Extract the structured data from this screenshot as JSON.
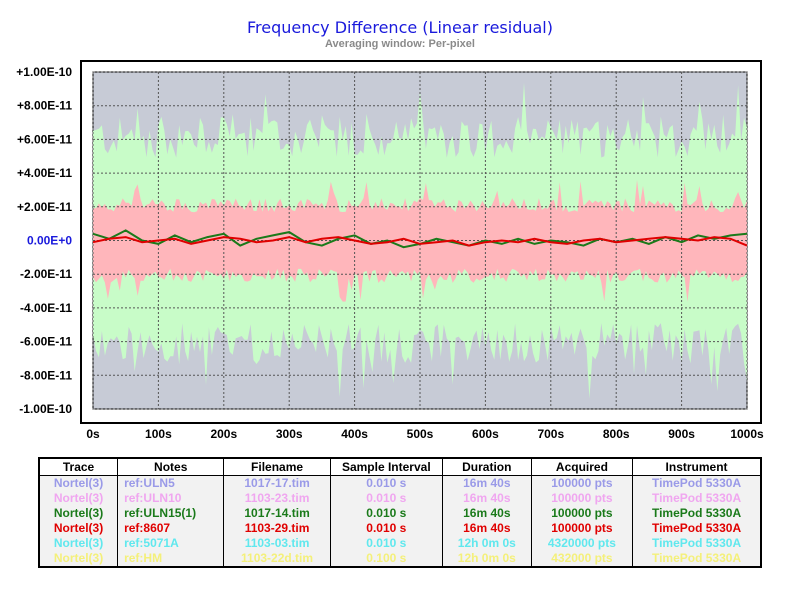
{
  "chart_data": {
    "type": "line",
    "title": "Frequency Difference  (Linear residual)",
    "subtitle": "Averaging window: Per-pixel",
    "xlabel": "",
    "ylabel": "",
    "x_ticks": [
      "0s",
      "100s",
      "200s",
      "300s",
      "400s",
      "500s",
      "600s",
      "700s",
      "800s",
      "900s",
      "1000s"
    ],
    "y_ticks": [
      "+1.00E-10",
      "+8.00E-11",
      "+6.00E-11",
      "+4.00E-11",
      "+2.00E-11",
      "0.00E+0",
      "-2.00E-11",
      "-4.00E-11",
      "-6.00E-11",
      "-8.00E-11",
      "-1.00E-10"
    ],
    "xlim": [
      0,
      1000
    ],
    "ylim": [
      -1e-10,
      1e-10
    ],
    "grid": true,
    "plot_background": "#c7cbd6",
    "series": [
      {
        "name": "ref:ULN10",
        "style": "envelope",
        "color": "#c8fcc8",
        "band": 7e-11,
        "spike": 9e-11
      },
      {
        "name": "ref:8607 band",
        "style": "envelope",
        "color": "#ffb6bb",
        "band": 2.4e-11,
        "spike": 3.5e-11
      },
      {
        "name": "ref:ULN15(1)",
        "style": "line",
        "color": "#1a7a1a",
        "x": [
          0,
          25,
          50,
          75,
          100,
          125,
          150,
          175,
          200,
          225,
          250,
          275,
          300,
          325,
          350,
          375,
          400,
          425,
          450,
          475,
          500,
          525,
          550,
          575,
          600,
          625,
          650,
          675,
          700,
          725,
          750,
          775,
          800,
          825,
          850,
          875,
          900,
          925,
          950,
          975,
          1000
        ],
        "values": [
          4e-12,
          1e-12,
          6e-12,
          0,
          -2e-12,
          3e-12,
          -1e-12,
          2e-12,
          4e-12,
          -3e-12,
          1e-12,
          3e-12,
          5e-12,
          -1e-12,
          -3e-12,
          1e-12,
          3e-12,
          -2e-12,
          0,
          -4e-12,
          -2e-12,
          1e-12,
          -1e-12,
          -3e-12,
          0,
          -2e-12,
          1e-12,
          -2e-12,
          0,
          -1e-12,
          -3e-12,
          1e-12,
          -1e-12,
          1e-12,
          -2e-12,
          2e-12,
          -1e-12,
          3e-12,
          1e-12,
          3e-12,
          4e-12
        ]
      },
      {
        "name": "ref:8607",
        "style": "line",
        "color": "#e00000",
        "x": [
          0,
          25,
          50,
          75,
          100,
          125,
          150,
          175,
          200,
          225,
          250,
          275,
          300,
          325,
          350,
          375,
          400,
          425,
          450,
          475,
          500,
          525,
          550,
          575,
          600,
          625,
          650,
          675,
          700,
          725,
          750,
          775,
          800,
          825,
          850,
          875,
          900,
          925,
          950,
          975,
          1000
        ],
        "values": [
          -1e-12,
          1e-12,
          2e-12,
          -1e-12,
          0,
          1e-12,
          -2e-12,
          0,
          2e-12,
          1e-12,
          -1e-12,
          0,
          2e-12,
          -1e-12,
          1e-12,
          2e-12,
          0,
          -2e-12,
          -1e-12,
          1e-12,
          -2e-12,
          -1e-12,
          0,
          -3e-12,
          -1e-12,
          0,
          -1e-12,
          1e-12,
          -1e-12,
          -2e-12,
          0,
          1e-12,
          -1e-12,
          0,
          1e-12,
          2e-12,
          1e-12,
          0,
          2e-12,
          1e-12,
          -3e-12
        ]
      }
    ]
  },
  "legend": {
    "headers": [
      "Trace",
      "Notes",
      "Filename",
      "Sample Interval",
      "Duration",
      "Acquired",
      "Instrument"
    ],
    "rows": [
      {
        "color": "#9a9ae8",
        "cells": [
          "Nortel(3)",
          "ref:ULN5",
          "1017-17.tim",
          "0.010 s",
          "16m 40s",
          "100000 pts",
          "TimePod 5330A"
        ]
      },
      {
        "color": "#f0a6f0",
        "cells": [
          "Nortel(3)",
          "ref:ULN10",
          "1103-23.tim",
          "0.010 s",
          "16m 40s",
          "100000 pts",
          "TimePod 5330A"
        ]
      },
      {
        "color": "#1a7a1a",
        "cells": [
          "Nortel(3)",
          "ref:ULN15(1)",
          "1017-14.tim",
          "0.010 s",
          "16m 40s",
          "100000 pts",
          "TimePod 5330A"
        ]
      },
      {
        "color": "#e00000",
        "cells": [
          "Nortel(3)",
          "ref:8607",
          "1103-29.tim",
          "0.010 s",
          "16m 40s",
          "100000 pts",
          "TimePod 5330A"
        ]
      },
      {
        "color": "#60e8ee",
        "cells": [
          "Nortel(3)",
          "ref:5071A",
          "1103-03.tim",
          "0.010 s",
          "12h 0m 0s",
          "4320000 pts",
          "TimePod 5330A"
        ]
      },
      {
        "color": "#f4f07a",
        "cells": [
          "Nortel(3)",
          "ref:HM",
          "1103-22d.tim",
          "0.100 s",
          "12h 0m 0s",
          "432000 pts",
          "TimePod 5330A"
        ]
      }
    ]
  }
}
